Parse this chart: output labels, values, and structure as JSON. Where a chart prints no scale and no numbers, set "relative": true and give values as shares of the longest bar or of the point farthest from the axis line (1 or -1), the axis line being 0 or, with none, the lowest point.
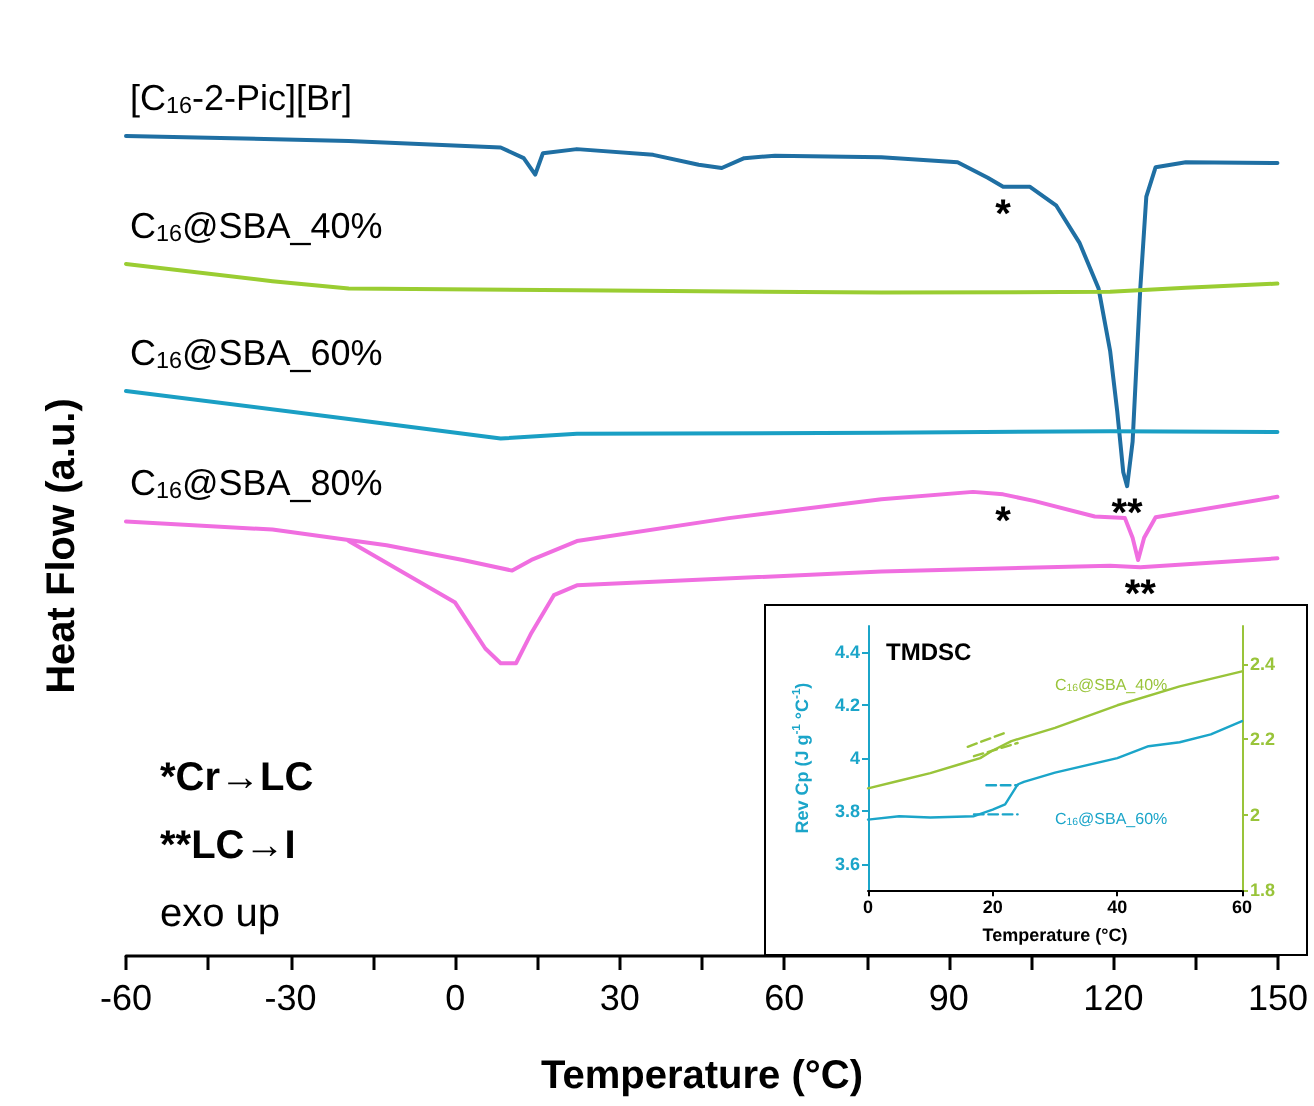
{
  "chart_data": [
    {
      "type": "line",
      "xlabel": "Temperature (°C)",
      "ylabel": "Heat Flow (a.u.)",
      "relative": true,
      "xlim": [
        -60,
        150
      ],
      "xticks": [
        -60,
        {
          "value": -45,
          "label": null
        },
        -30,
        {
          "value": -15,
          "label": null
        },
        0,
        {
          "value": 15,
          "label": null
        },
        30,
        {
          "value": 45,
          "label": null
        },
        60,
        {
          "value": 75,
          "label": null
        },
        90,
        {
          "value": 105,
          "label": null
        },
        120,
        {
          "value": 135,
          "label": null
        },
        150
      ],
      "grid": false,
      "legend": false,
      "marker": "none",
      "line_style": "solid",
      "series": [
        {
          "name": "[C$_{16}$-2-Pic][Br]",
          "color": "#1f6fa3",
          "x": [
            -60,
            -19.4,
            8.3,
            12.5,
            14.6,
            16.0,
            22.2,
            36.1,
            44.4,
            48.6,
            52.7,
            58.3,
            77.7,
            91.6,
            97.1,
            99.9,
            104.8,
            109.6,
            113.8,
            117.3,
            119.4,
            120.7,
            121.8,
            122.5,
            123.5,
            124.9,
            126.0,
            127.7,
            133.2,
            149.9
          ],
          "values": [
            1.0,
            0.994,
            0.986,
            0.973,
            0.953,
            0.979,
            0.984,
            0.977,
            0.965,
            0.961,
            0.973,
            0.976,
            0.974,
            0.968,
            0.949,
            0.938,
            0.938,
            0.915,
            0.87,
            0.814,
            0.738,
            0.664,
            0.59,
            0.573,
            0.627,
            0.814,
            0.926,
            0.962,
            0.968,
            0.967
          ]
        },
        {
          "name": "C$_{16}$@SBA_40%",
          "color": "#9acd32",
          "x": [
            -60,
            -33.3,
            -19.4,
            22.2,
            77.7,
            119.4,
            133.2,
            149.9
          ],
          "values": [
            0.844,
            0.823,
            0.814,
            0.812,
            0.809,
            0.81,
            0.815,
            0.82
          ]
        },
        {
          "name": "C$_{16}$@SBA_60%",
          "color": "#1a9fc4",
          "x": [
            -60,
            -19.4,
            8.3,
            22.2,
            77.7,
            119.4,
            149.9
          ],
          "values": [
            0.689,
            0.655,
            0.631,
            0.637,
            0.638,
            0.64,
            0.639
          ]
        },
        {
          "name": "C$_{16}$@SBA_80%",
          "color": "#f06ee0",
          "x": [
            -60,
            -33.3,
            -12.5,
            1.4,
            10.4,
            13.9,
            22.2,
            49.9,
            77.7,
            94.4,
            99.9,
            105.5,
            116.6,
            122.1,
            123.5,
            124.5,
            125.6,
            127.7,
            149.9
          ],
          "values": [
            0.53,
            0.52,
            0.501,
            0.483,
            0.47,
            0.483,
            0.506,
            0.534,
            0.557,
            0.566,
            0.563,
            0.555,
            0.536,
            0.534,
            0.51,
            0.483,
            0.51,
            0.535,
            0.56
          ]
        },
        {
          "color": "#f06ee0",
          "x": [
            -19.4,
            0.0,
            5.5,
            8.3,
            11.1,
            13.9,
            18.0,
            22.2,
            77.7,
            119.4,
            124.9,
            149.9
          ],
          "values": [
            0.506,
            0.431,
            0.375,
            0.357,
            0.357,
            0.394,
            0.44,
            0.452,
            0.469,
            0.476,
            0.474,
            0.485
          ]
        }
      ],
      "annotations": [
        {
          "text": "*",
          "x": 99.9,
          "y": 0.938
        },
        {
          "text": "**",
          "x": 122.5,
          "y": 0.573
        },
        {
          "text": "*",
          "x": 99.9,
          "y": 0.563
        },
        {
          "text": "**",
          "x": 124.9,
          "y": 0.474
        },
        "*Cr→LC",
        "**LC→I",
        "exo up"
      ]
    },
    {
      "type": "line",
      "title": "TMDSC",
      "xlabel": "Temperature (°C)",
      "ylabel": "Rev Cp (J g$^{-1}$ °C$^{-1}$)",
      "xlim": [
        0,
        60
      ],
      "xticks": [
        0,
        20,
        40,
        60
      ],
      "ylim": [
        3.5,
        4.5
      ],
      "yticks": [
        3.6,
        3.8,
        4.0,
        4.2,
        4.4
      ],
      "y2lim": [
        1.8,
        2.5
      ],
      "y2ticks": [
        1.8,
        2.0,
        2.2,
        2.4
      ],
      "grid": false,
      "legend": false,
      "marker": "none",
      "series": [
        {
          "name": "C$_{16}$@SBA_40%",
          "color": "#99c43a",
          "axis": "y2",
          "line_style": "solid",
          "x": [
            0,
            5,
            10,
            15,
            18,
            20,
            23,
            30,
            40,
            50,
            55,
            60
          ],
          "values": [
            2.07,
            2.09,
            2.11,
            2.135,
            2.15,
            2.17,
            2.195,
            2.23,
            2.29,
            2.34,
            2.36,
            2.38
          ]
        },
        {
          "name": "C$_{16}$@SBA_60%",
          "color": "#1ba5c9",
          "axis": "y",
          "line_style": "solid",
          "x": [
            0,
            5,
            10,
            17,
            20,
            22,
            24,
            25,
            30,
            40,
            45,
            50,
            55,
            60
          ],
          "values": [
            3.767,
            3.78,
            3.775,
            3.78,
            3.805,
            3.825,
            3.9,
            3.91,
            3.945,
            4.0,
            4.045,
            4.06,
            4.09,
            4.14
          ]
        },
        {
          "color": "#1ba5c9",
          "axis": "y",
          "line_style": "dashed",
          "x": [
            19,
            24
          ],
          "values": [
            3.897,
            3.897
          ]
        },
        {
          "color": "#1ba5c9",
          "axis": "y",
          "line_style": "dashed",
          "x": [
            17,
            24
          ],
          "values": [
            3.787,
            3.787
          ]
        },
        {
          "color": "#99c43a",
          "axis": "y2",
          "line_style": "dashed",
          "x": [
            16,
            22
          ],
          "values": [
            2.18,
            2.217
          ]
        },
        {
          "color": "#99c43a",
          "axis": "y2",
          "line_style": "dashed",
          "x": [
            17,
            24
          ],
          "values": [
            2.155,
            2.19
          ]
        }
      ]
    }
  ]
}
